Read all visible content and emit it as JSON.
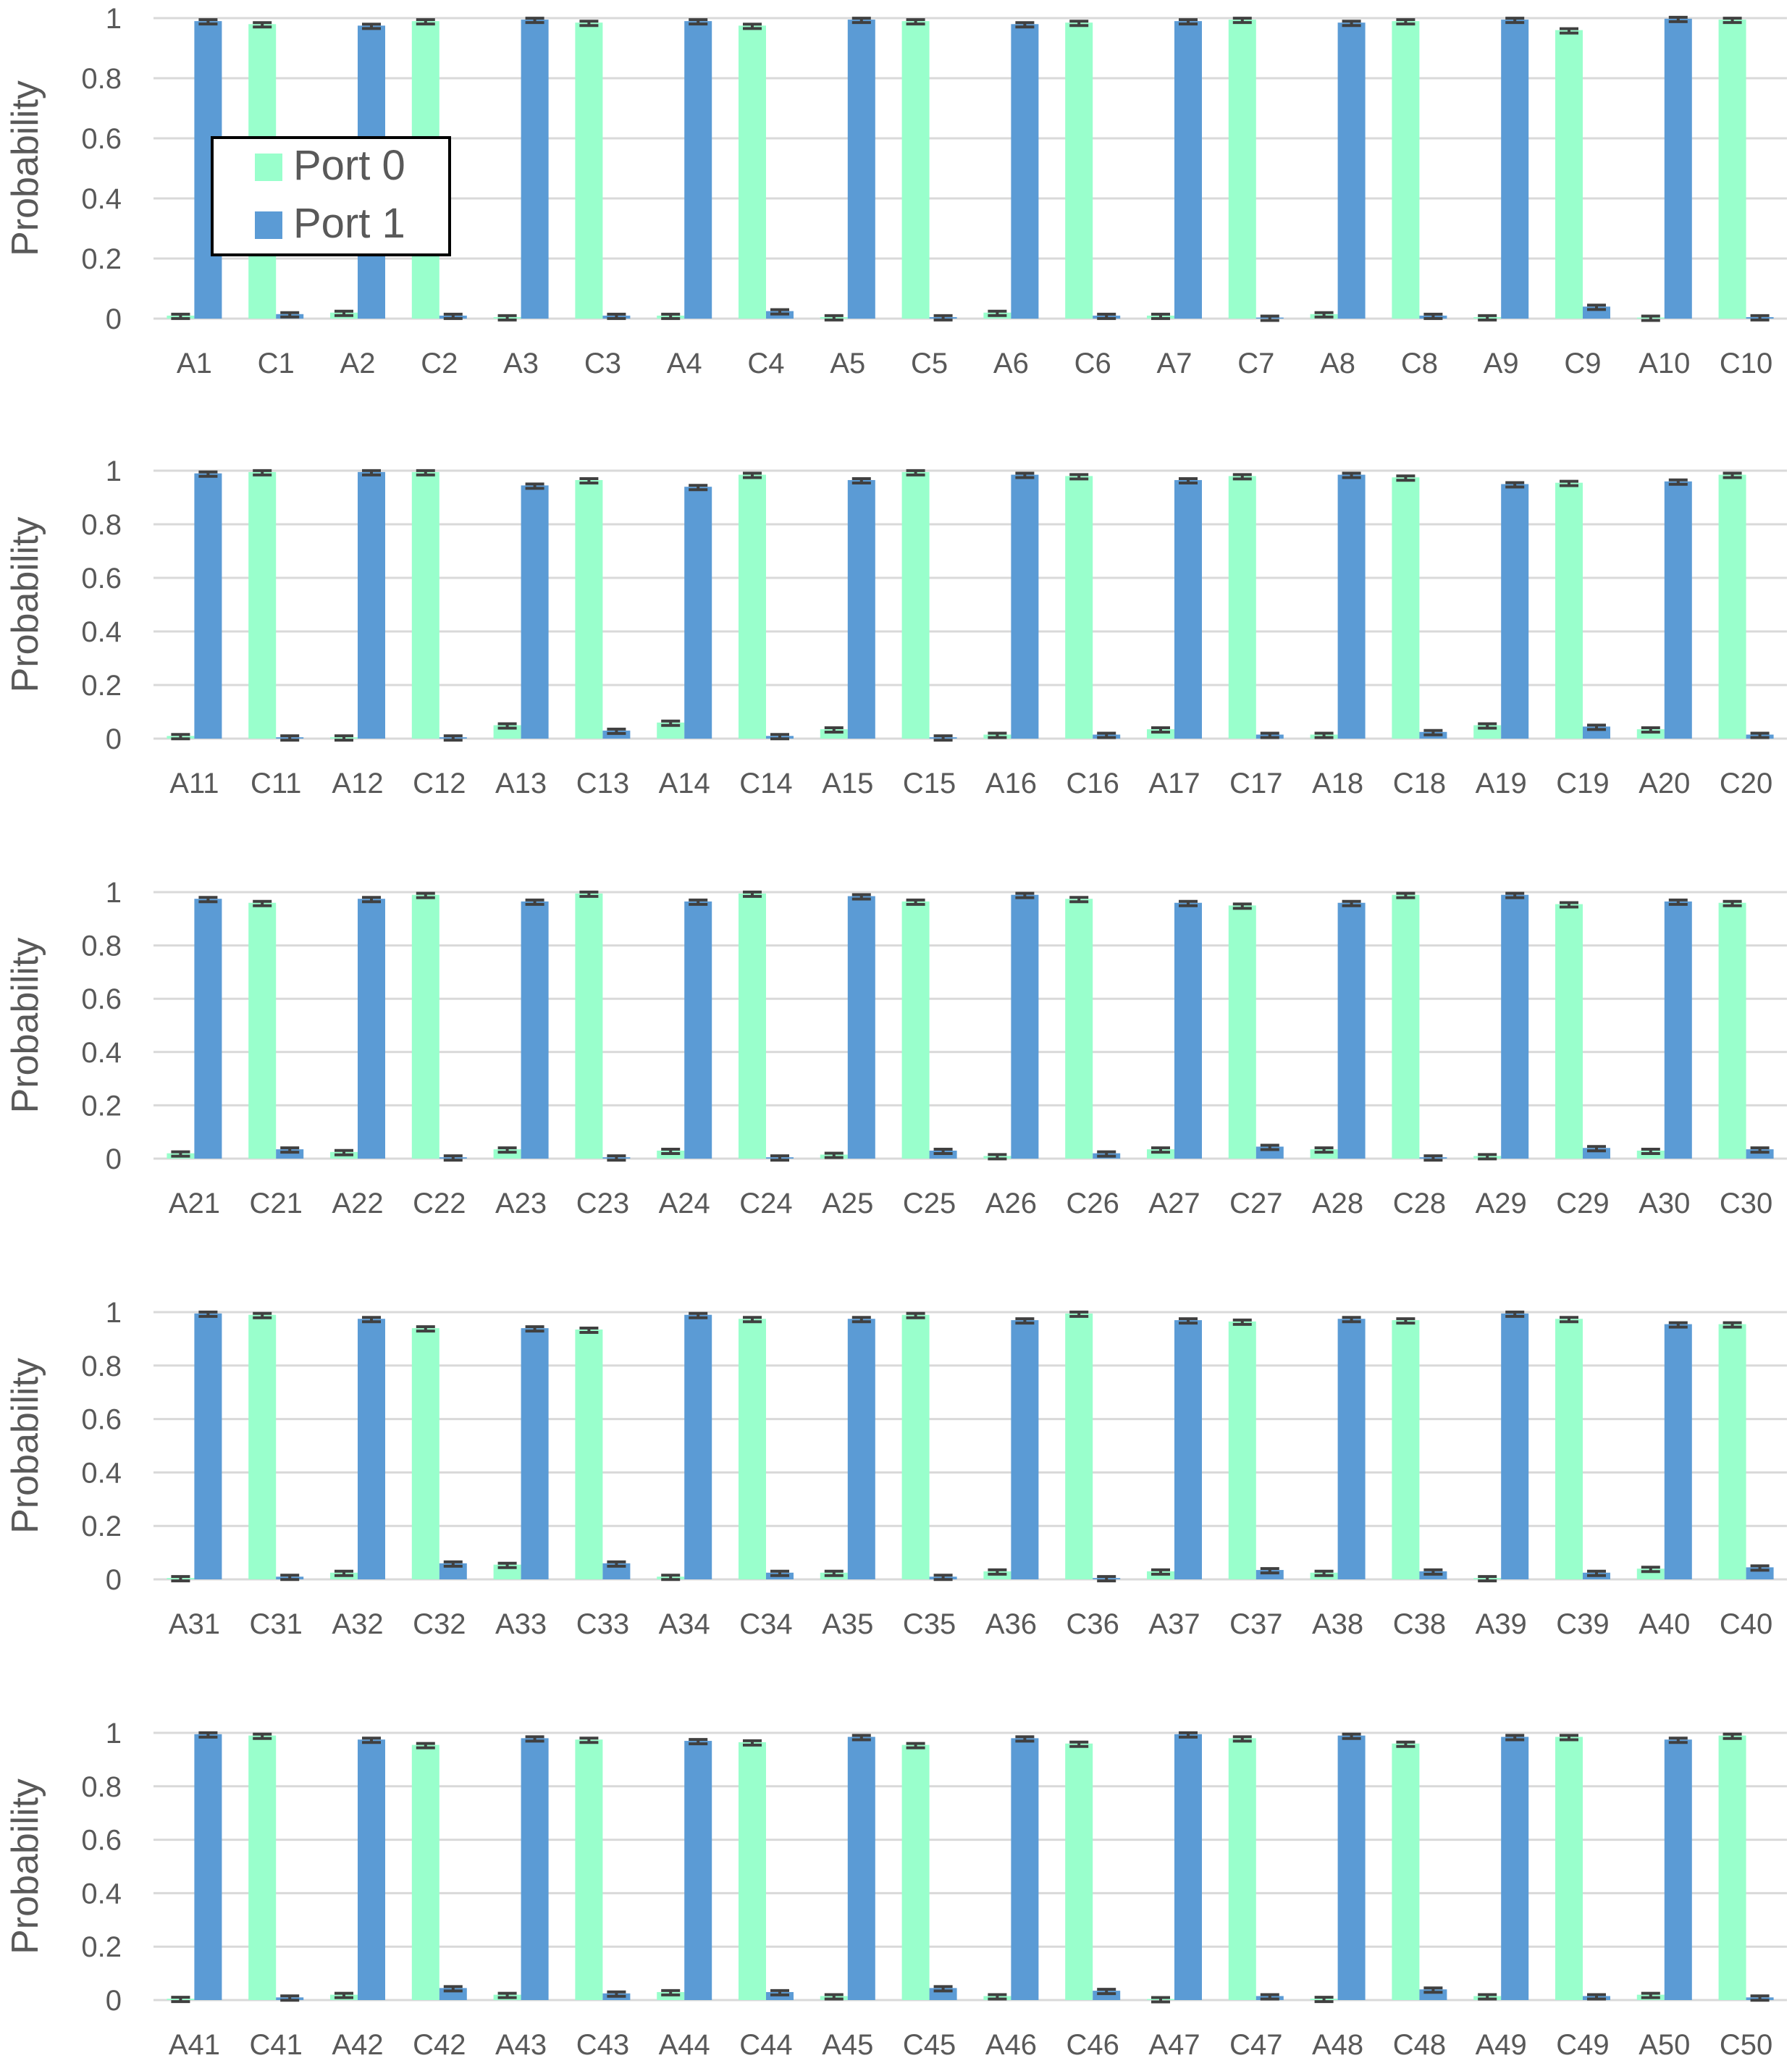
{
  "chart_data": [
    {
      "type": "bar",
      "ylabel": "Probability",
      "ylim": [
        0,
        1
      ],
      "yticks": [
        "0",
        "0.2",
        "0.4",
        "0.6",
        "0.8",
        "1"
      ],
      "categories": [
        "A1",
        "C1",
        "A2",
        "C2",
        "A3",
        "C3",
        "A4",
        "C4",
        "A5",
        "C5",
        "A6",
        "C6",
        "A7",
        "C7",
        "A8",
        "C8",
        "A9",
        "C9",
        "A10",
        "C10"
      ],
      "series": [
        {
          "name": "Port 0",
          "color": "#99ffcc",
          "values": [
            0.01,
            0.98,
            0.02,
            0.99,
            0.005,
            0.985,
            0.01,
            0.975,
            0.005,
            0.99,
            0.02,
            0.985,
            0.01,
            0.995,
            0.015,
            0.99,
            0.005,
            0.96,
            0.002,
            0.995
          ]
        },
        {
          "name": "Port 1",
          "color": "#5b9bd5",
          "values": [
            0.99,
            0.015,
            0.975,
            0.01,
            0.995,
            0.01,
            0.99,
            0.025,
            0.995,
            0.005,
            0.98,
            0.01,
            0.99,
            0.003,
            0.985,
            0.01,
            0.995,
            0.04,
            0.998,
            0.005
          ]
        }
      ],
      "legend": {
        "position": "top-left",
        "entries": [
          "Port 0",
          "Port 1"
        ]
      }
    },
    {
      "type": "bar",
      "ylabel": "Probability",
      "ylim": [
        0,
        1
      ],
      "yticks": [
        "0",
        "0.2",
        "0.4",
        "0.6",
        "0.8",
        "1"
      ],
      "categories": [
        "A11",
        "C11",
        "A12",
        "C12",
        "A13",
        "C13",
        "A14",
        "C14",
        "A15",
        "C15",
        "A16",
        "C16",
        "A17",
        "C17",
        "A18",
        "C18",
        "A19",
        "C19",
        "A20",
        "C20"
      ],
      "series": [
        {
          "name": "Port 0",
          "color": "#99ffcc",
          "values": [
            0.01,
            0.995,
            0.005,
            0.995,
            0.05,
            0.965,
            0.06,
            0.985,
            0.035,
            0.995,
            0.015,
            0.98,
            0.035,
            0.98,
            0.015,
            0.975,
            0.05,
            0.955,
            0.035,
            0.985
          ]
        },
        {
          "name": "Port 1",
          "color": "#5b9bd5",
          "values": [
            0.99,
            0.005,
            0.995,
            0.005,
            0.945,
            0.03,
            0.94,
            0.01,
            0.965,
            0.005,
            0.985,
            0.015,
            0.965,
            0.015,
            0.985,
            0.025,
            0.95,
            0.045,
            0.96,
            0.015
          ]
        }
      ]
    },
    {
      "type": "bar",
      "ylabel": "Probability",
      "ylim": [
        0,
        1
      ],
      "yticks": [
        "0",
        "0.2",
        "0.4",
        "0.6",
        "0.8",
        "1"
      ],
      "categories": [
        "A21",
        "C21",
        "A22",
        "C22",
        "A23",
        "C23",
        "A24",
        "C24",
        "A25",
        "C25",
        "A26",
        "C26",
        "A27",
        "C27",
        "A28",
        "C28",
        "A29",
        "C29",
        "A30",
        "C30"
      ],
      "series": [
        {
          "name": "Port 0",
          "color": "#99ffcc",
          "values": [
            0.02,
            0.96,
            0.025,
            0.99,
            0.035,
            0.995,
            0.03,
            0.995,
            0.015,
            0.965,
            0.01,
            0.975,
            0.035,
            0.95,
            0.035,
            0.99,
            0.01,
            0.955,
            0.03,
            0.96
          ]
        },
        {
          "name": "Port 1",
          "color": "#5b9bd5",
          "values": [
            0.975,
            0.035,
            0.975,
            0.005,
            0.965,
            0.005,
            0.965,
            0.005,
            0.985,
            0.03,
            0.99,
            0.02,
            0.96,
            0.045,
            0.96,
            0.005,
            0.99,
            0.04,
            0.965,
            0.035
          ]
        }
      ]
    },
    {
      "type": "bar",
      "ylabel": "Probability",
      "ylim": [
        0,
        1
      ],
      "yticks": [
        "0",
        "0.2",
        "0.4",
        "0.6",
        "0.8",
        "1"
      ],
      "categories": [
        "A31",
        "C31",
        "A32",
        "C32",
        "A33",
        "C33",
        "A34",
        "C34",
        "A35",
        "C35",
        "A36",
        "C36",
        "A37",
        "C37",
        "A38",
        "C38",
        "A39",
        "C39",
        "A40",
        "C40"
      ],
      "series": [
        {
          "name": "Port 0",
          "color": "#99ffcc",
          "values": [
            0.005,
            0.99,
            0.025,
            0.94,
            0.055,
            0.935,
            0.01,
            0.975,
            0.025,
            0.99,
            0.03,
            0.995,
            0.03,
            0.965,
            0.025,
            0.97,
            0.005,
            0.975,
            0.04,
            0.955
          ]
        },
        {
          "name": "Port 1",
          "color": "#5b9bd5",
          "values": [
            0.995,
            0.01,
            0.975,
            0.06,
            0.94,
            0.06,
            0.99,
            0.025,
            0.975,
            0.01,
            0.97,
            0.005,
            0.97,
            0.035,
            0.975,
            0.03,
            0.995,
            0.025,
            0.955,
            0.045
          ]
        }
      ]
    },
    {
      "type": "bar",
      "ylabel": "Probability",
      "ylim": [
        0,
        1
      ],
      "yticks": [
        "0",
        "0.2",
        "0.4",
        "0.6",
        "0.8",
        "1"
      ],
      "categories": [
        "A41",
        "C41",
        "A42",
        "C42",
        "A43",
        "C43",
        "A44",
        "C44",
        "A45",
        "C45",
        "A46",
        "C46",
        "A47",
        "C47",
        "A48",
        "C48",
        "A49",
        "C49",
        "A50",
        "C50"
      ],
      "series": [
        {
          "name": "Port 0",
          "color": "#99ffcc",
          "values": [
            0.005,
            0.99,
            0.02,
            0.955,
            0.02,
            0.975,
            0.03,
            0.965,
            0.015,
            0.955,
            0.015,
            0.96,
            0.003,
            0.98,
            0.005,
            0.96,
            0.015,
            0.985,
            0.02,
            0.99
          ]
        },
        {
          "name": "Port 1",
          "color": "#5b9bd5",
          "values": [
            0.995,
            0.01,
            0.975,
            0.045,
            0.98,
            0.025,
            0.97,
            0.03,
            0.985,
            0.045,
            0.98,
            0.035,
            0.995,
            0.015,
            0.99,
            0.04,
            0.985,
            0.015,
            0.975,
            0.01
          ]
        }
      ]
    }
  ]
}
